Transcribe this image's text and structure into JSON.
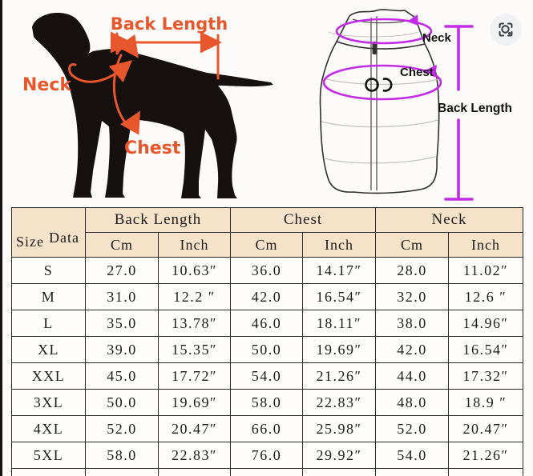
{
  "colors": {
    "accent_orange": "#e8562b",
    "accent_purple": "#c32ce6",
    "table_header_bg": "#f6e2c8",
    "table_border": "#2b2b2b"
  },
  "dog_diagram": {
    "back_length_label": "Back Length",
    "neck_label": "Neck",
    "chest_label": "Chest"
  },
  "vest_diagram": {
    "neck_label": "Neck",
    "chest_label": "Chest",
    "back_length_label": "Back Length"
  },
  "size_table": {
    "corner": {
      "size": "Size",
      "data": "Data"
    },
    "groups": [
      "Back Length",
      "Chest",
      "Neck"
    ],
    "units": [
      "Cm",
      "Inch",
      "Cm",
      "Inch",
      "Cm",
      "Inch"
    ],
    "rows": [
      {
        "size": "S",
        "cells": [
          "27.0",
          "10.63″",
          "36.0",
          "14.17″",
          "28.0",
          "11.02″"
        ]
      },
      {
        "size": "M",
        "cells": [
          "31.0",
          "12.2 ″",
          "42.0",
          "16.54″",
          "32.0",
          "12.6 ″"
        ]
      },
      {
        "size": "L",
        "cells": [
          "35.0",
          "13.78″",
          "46.0",
          "18.11″",
          "38.0",
          "14.96″"
        ]
      },
      {
        "size": "XL",
        "cells": [
          "39.0",
          "15.35″",
          "50.0",
          "19.69″",
          "42.0",
          "16.54″"
        ]
      },
      {
        "size": "XXL",
        "cells": [
          "45.0",
          "17.72″",
          "54.0",
          "21.26″",
          "44.0",
          "17.32″"
        ]
      },
      {
        "size": "3XL",
        "cells": [
          "50.0",
          "19.69″",
          "58.0",
          "22.83″",
          "48.0",
          "18.9 ″"
        ]
      },
      {
        "size": "4XL",
        "cells": [
          "52.0",
          "20.47″",
          "66.0",
          "25.98″",
          "52.0",
          "20.47″"
        ]
      },
      {
        "size": "5XL",
        "cells": [
          "58.0",
          "22.83″",
          "76.0",
          "29.92″",
          "54.0",
          "21.26″"
        ]
      }
    ]
  }
}
